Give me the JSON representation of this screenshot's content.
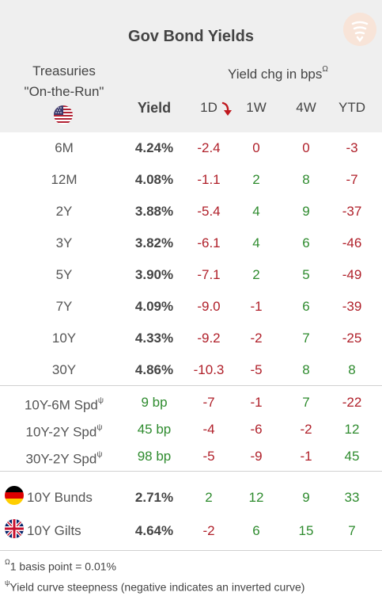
{
  "title": "Gov Bond Yields",
  "header": {
    "treasuries_line1": "Treasuries",
    "treasuries_line2": "\"On-the-Run\"",
    "yield_chg": "Yield chg in bps",
    "yield_chg_sup": "Ω",
    "yield": "Yield",
    "d1": "1D",
    "w1": "1W",
    "w4": "4W",
    "ytd": "YTD"
  },
  "treasuries": [
    {
      "label": "6M",
      "yield": "4.24%",
      "d1": "-2.4",
      "w1": "0",
      "w4": "0",
      "ytd": "-3"
    },
    {
      "label": "12M",
      "yield": "4.08%",
      "d1": "-1.1",
      "w1": "2",
      "w4": "8",
      "ytd": "-7"
    },
    {
      "label": "2Y",
      "yield": "3.88%",
      "d1": "-5.4",
      "w1": "4",
      "w4": "9",
      "ytd": "-37"
    },
    {
      "label": "3Y",
      "yield": "3.82%",
      "d1": "-6.1",
      "w1": "4",
      "w4": "6",
      "ytd": "-46"
    },
    {
      "label": "5Y",
      "yield": "3.90%",
      "d1": "-7.1",
      "w1": "2",
      "w4": "5",
      "ytd": "-49"
    },
    {
      "label": "7Y",
      "yield": "4.09%",
      "d1": "-9.0",
      "w1": "-1",
      "w4": "6",
      "ytd": "-39"
    },
    {
      "label": "10Y",
      "yield": "4.33%",
      "d1": "-9.2",
      "w1": "-2",
      "w4": "7",
      "ytd": "-25"
    },
    {
      "label": "30Y",
      "yield": "4.86%",
      "d1": "-10.3",
      "w1": "-5",
      "w4": "8",
      "ytd": "8"
    }
  ],
  "spreads": [
    {
      "label": "10Y-6M Spd",
      "sup": "ψ",
      "yield": "9 bp",
      "d1": "-7",
      "w1": "-1",
      "w4": "7",
      "ytd": "-22"
    },
    {
      "label": "10Y-2Y Spd",
      "sup": "ψ",
      "yield": "45 bp",
      "d1": "-4",
      "w1": "-6",
      "w4": "-2",
      "ytd": "12"
    },
    {
      "label": "30Y-2Y Spd",
      "sup": "ψ",
      "yield": "98 bp",
      "d1": "-5",
      "w1": "-9",
      "w4": "-1",
      "ytd": "45"
    }
  ],
  "international": [
    {
      "label": "10Y Bunds",
      "flag": "germany-flag",
      "yield": "2.71%",
      "d1": "2",
      "w1": "12",
      "w4": "9",
      "ytd": "33"
    },
    {
      "label": "10Y Gilts",
      "flag": "uk-flag",
      "yield": "4.64%",
      "d1": "-2",
      "w1": "6",
      "w4": "15",
      "ytd": "7"
    }
  ],
  "footnotes": {
    "bps_sup": "Ω",
    "bps": "1 basis point = 0.01%",
    "curve_sup": "ψ",
    "curve": "Yield curve steepness (negative indicates an inverted curve)"
  },
  "colors": {
    "negative": "#b0202a",
    "positive": "#2e8b2e",
    "header_bg": "#efefef",
    "sort_arrow": "#c0181e"
  },
  "icons": {
    "sort": "sort-down-arrow-icon",
    "us_flag": "us-flag-icon",
    "logo": "brand-logo-icon"
  }
}
